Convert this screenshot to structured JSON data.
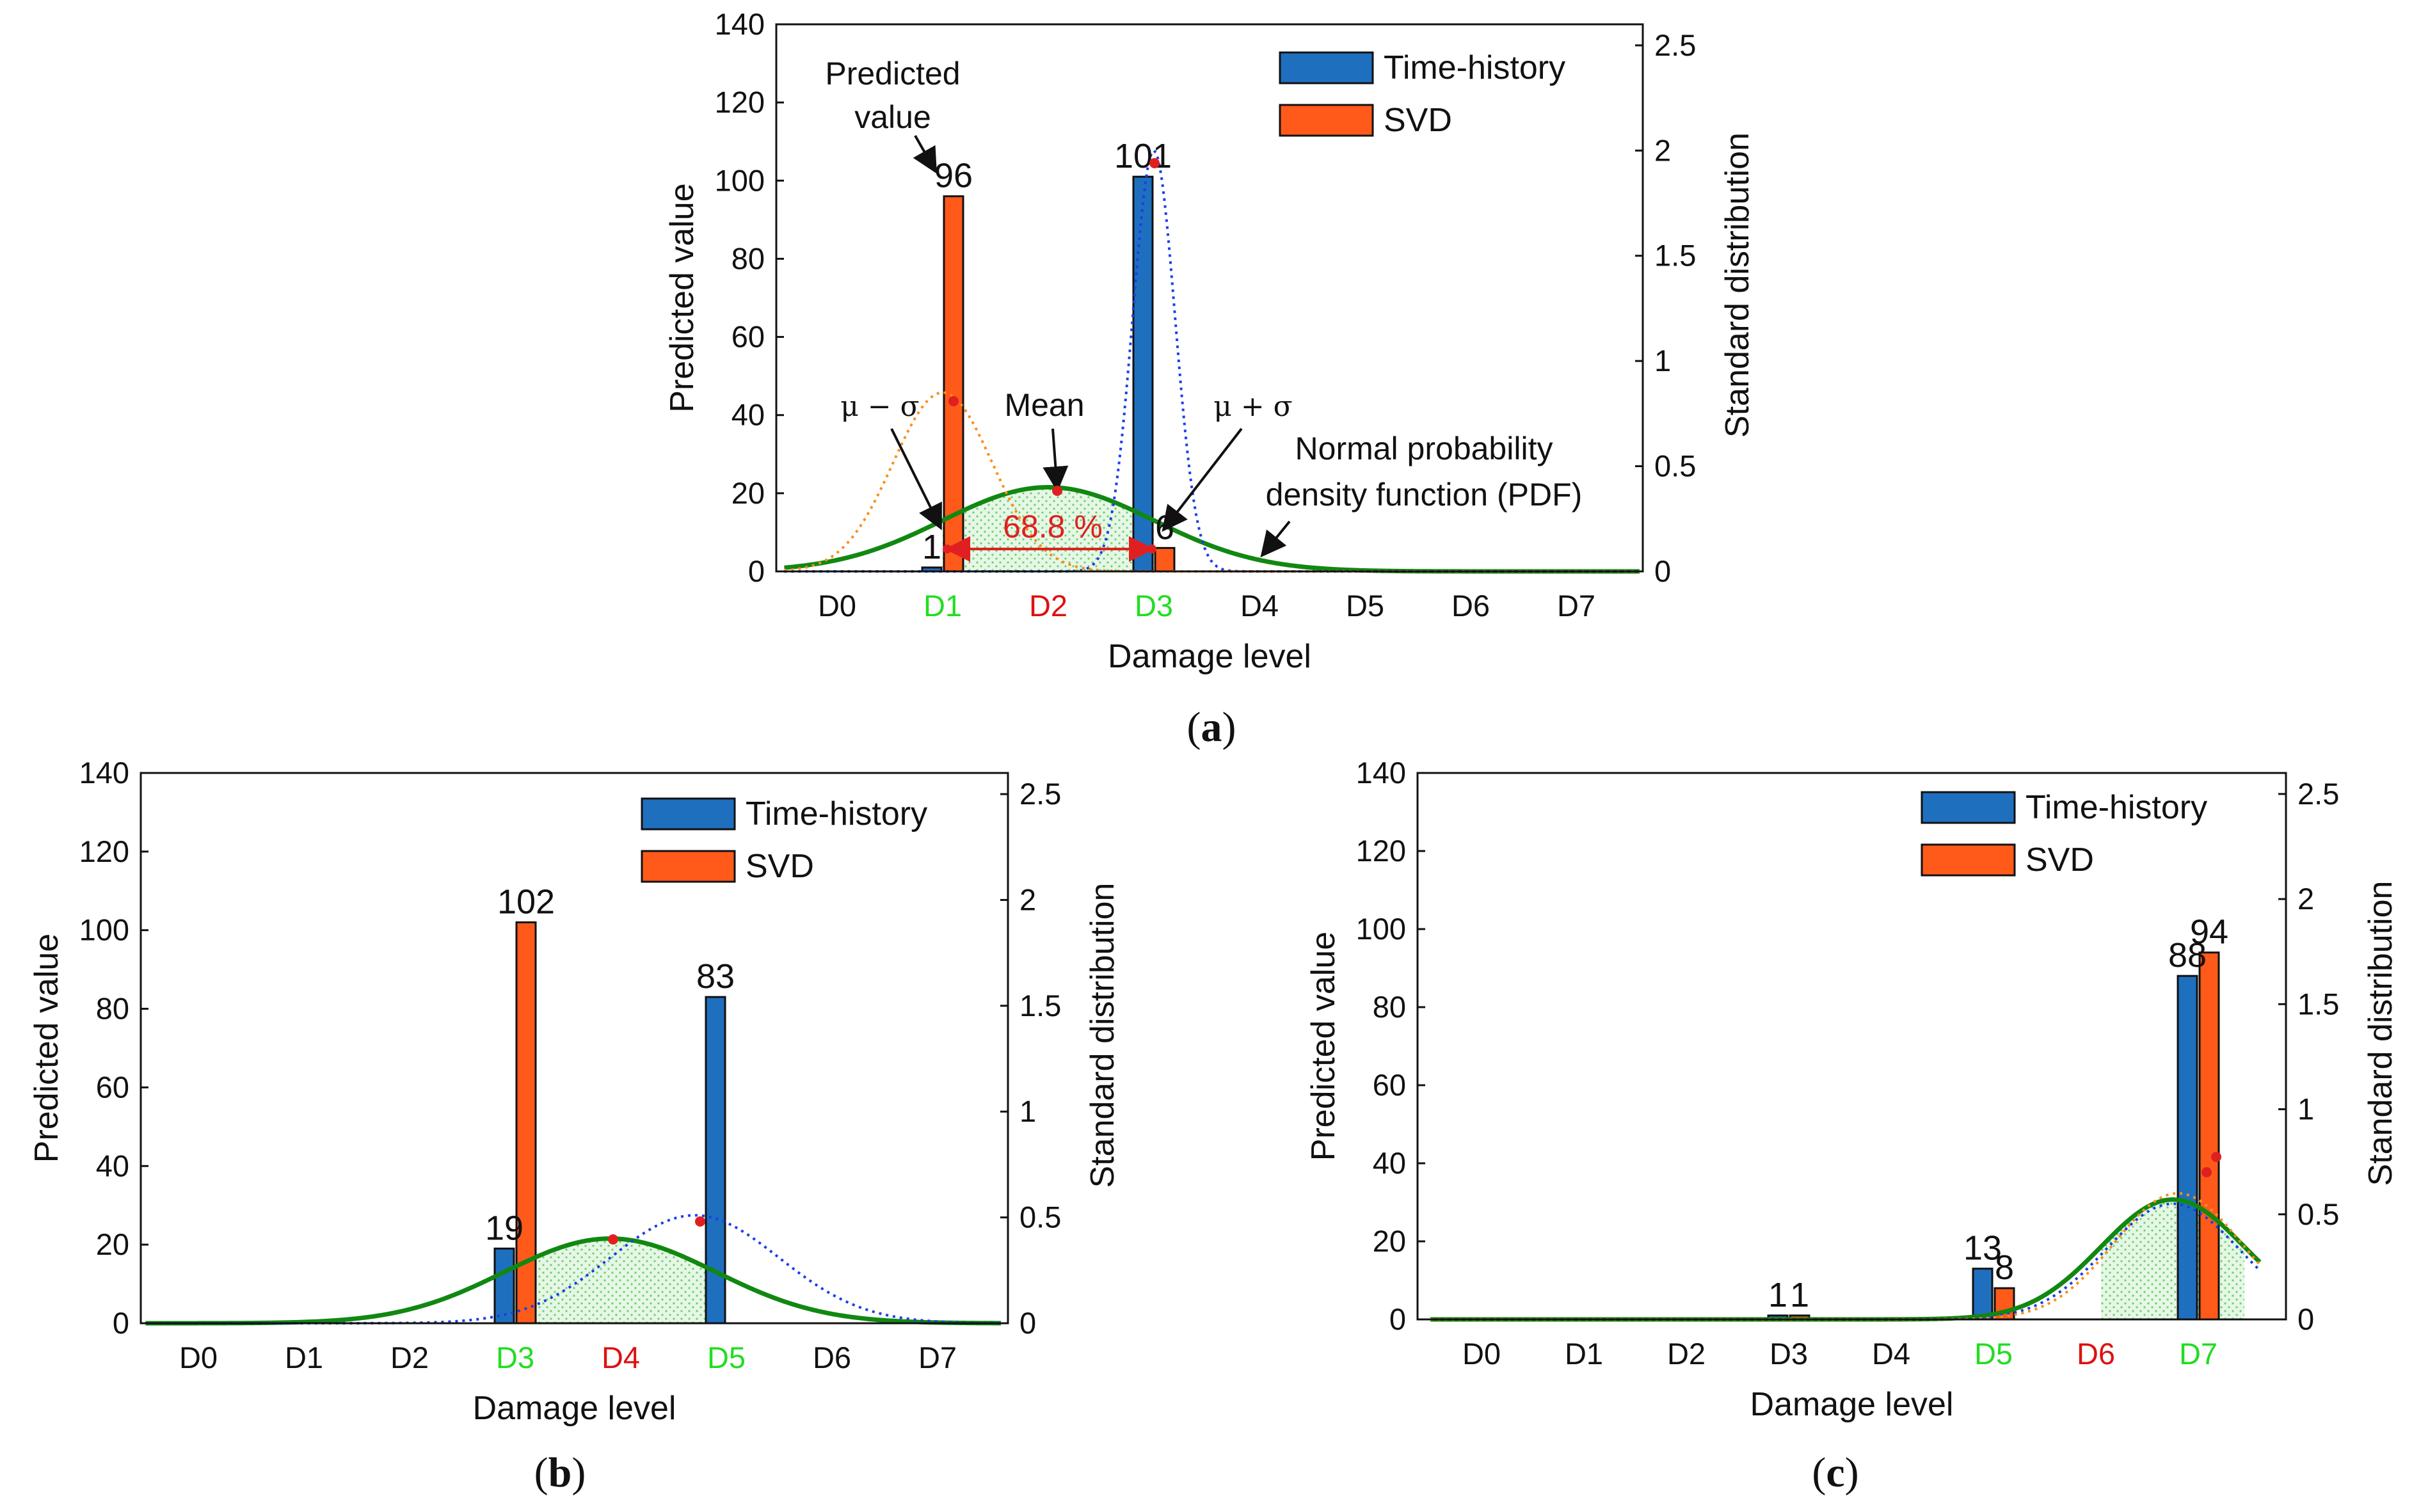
{
  "chart_data": [
    {
      "panel": "a",
      "type": "bar",
      "title": "",
      "caption": "a",
      "xlabel": "Damage level",
      "ylabel": "Predicted value",
      "y2label": "Standard distribution",
      "categories": [
        "D0",
        "D1",
        "D2",
        "D3",
        "D4",
        "D5",
        "D6",
        "D7"
      ],
      "category_colors": [
        "#111111",
        "#22dd22",
        "#dd1111",
        "#22dd22",
        "#111111",
        "#111111",
        "#111111",
        "#111111"
      ],
      "ylim": [
        0,
        140
      ],
      "yticks": [
        0,
        20,
        40,
        60,
        80,
        100,
        120,
        140
      ],
      "y2lim": [
        0,
        2.6
      ],
      "y2ticks": [
        0,
        0.5,
        1,
        1.5,
        2,
        2.5
      ],
      "y2ticklabels": [
        "0",
        "0.5",
        "1",
        "1.5",
        "2",
        "2.5"
      ],
      "series": [
        {
          "name": "Time-history",
          "color": "#1f6fbf",
          "values": [
            0,
            1,
            0,
            101,
            0,
            0,
            0,
            0
          ]
        },
        {
          "name": "SVD",
          "color": "#ff5a1a",
          "values": [
            0,
            96,
            0,
            6,
            0,
            0,
            0,
            0
          ]
        }
      ],
      "bar_labels": [
        {
          "series": 0,
          "index": 1,
          "text": "1"
        },
        {
          "series": 0,
          "index": 3,
          "text": "101"
        },
        {
          "series": 1,
          "index": 1,
          "text": "96"
        },
        {
          "series": 1,
          "index": 3,
          "text": "6"
        }
      ],
      "pdf_curves": [
        {
          "name": "Normal PDF",
          "style": "solid",
          "color": "#118811",
          "mean": 2.0,
          "std": 1.0,
          "scale": 0.4
        },
        {
          "name": "Time-history PDF",
          "style": "dotted",
          "color": "#1a3fe6",
          "mean": 3.0,
          "std": 0.2,
          "scale": 2.0
        },
        {
          "name": "SVD PDF",
          "style": "dotted",
          "color": "#ff8c1a",
          "mean": 1.0,
          "std": 0.47,
          "scale": 0.85
        }
      ],
      "shade_range": [
        1.0,
        3.0
      ],
      "annotations": {
        "predicted_value": [
          "Predicted",
          "value"
        ],
        "mean": "Mean",
        "mu_minus_sigma": "μ − σ",
        "mu_plus_sigma": "μ + σ",
        "pdf_label": [
          "Normal probability",
          "density function (PDF)"
        ],
        "percent": "68.8 %"
      }
    },
    {
      "panel": "b",
      "type": "bar",
      "title": "",
      "caption": "b",
      "xlabel": "Damage level",
      "ylabel": "Predicted value",
      "y2label": "Standard distribution",
      "categories": [
        "D0",
        "D1",
        "D2",
        "D3",
        "D4",
        "D5",
        "D6",
        "D7"
      ],
      "category_colors": [
        "#111111",
        "#111111",
        "#111111",
        "#22dd22",
        "#dd1111",
        "#22dd22",
        "#111111",
        "#111111"
      ],
      "ylim": [
        0,
        140
      ],
      "yticks": [
        0,
        20,
        40,
        60,
        80,
        100,
        120,
        140
      ],
      "y2lim": [
        0,
        2.6
      ],
      "y2ticks": [
        0,
        0.5,
        1,
        1.5,
        2,
        2.5
      ],
      "y2ticklabels": [
        "0",
        "0.5",
        "1",
        "1.5",
        "2",
        "2.5"
      ],
      "series": [
        {
          "name": "Time-history",
          "color": "#1f6fbf",
          "values": [
            0,
            0,
            0,
            19,
            0,
            83,
            0,
            0
          ]
        },
        {
          "name": "SVD",
          "color": "#ff5a1a",
          "values": [
            0,
            0,
            0,
            102,
            0,
            0,
            0,
            0
          ]
        }
      ],
      "bar_labels": [
        {
          "series": 0,
          "index": 3,
          "text": "19"
        },
        {
          "series": 0,
          "index": 5,
          "text": "83"
        },
        {
          "series": 1,
          "index": 3,
          "text": "102"
        }
      ],
      "pdf_curves": [
        {
          "name": "Normal PDF",
          "style": "solid",
          "color": "#118811",
          "mean": 3.9,
          "std": 1.0,
          "scale": 0.4
        },
        {
          "name": "Time-history PDF",
          "style": "dotted",
          "color": "#1a3fe6",
          "mean": 4.7,
          "std": 0.8,
          "scale": 0.51
        }
      ],
      "shade_range": [
        2.9,
        4.9
      ]
    },
    {
      "panel": "c",
      "type": "bar",
      "title": "",
      "caption": "c",
      "xlabel": "Damage level",
      "ylabel": "Predicted value",
      "y2label": "Standard distribution",
      "categories": [
        "D0",
        "D1",
        "D2",
        "D3",
        "D4",
        "D5",
        "D6",
        "D7"
      ],
      "category_colors": [
        "#111111",
        "#111111",
        "#111111",
        "#111111",
        "#111111",
        "#22dd22",
        "#dd1111",
        "#22dd22"
      ],
      "ylim": [
        0,
        140
      ],
      "yticks": [
        0,
        20,
        40,
        60,
        80,
        100,
        120,
        140
      ],
      "y2lim": [
        0,
        2.6
      ],
      "y2ticks": [
        0,
        0.5,
        1,
        1.5,
        2,
        2.5
      ],
      "y2ticklabels": [
        "0",
        "0.5",
        "1",
        "1.5",
        "2",
        "2.5"
      ],
      "series": [
        {
          "name": "Time-history",
          "color": "#1f6fbf",
          "values": [
            0,
            0,
            0,
            1,
            0,
            13,
            0,
            88
          ]
        },
        {
          "name": "SVD",
          "color": "#ff5a1a",
          "values": [
            0,
            0,
            0,
            1,
            0,
            8,
            0,
            94
          ]
        }
      ],
      "bar_labels": [
        {
          "series": 0,
          "index": 3,
          "text": "1"
        },
        {
          "series": 1,
          "index": 3,
          "text": "1"
        },
        {
          "series": 0,
          "index": 5,
          "text": "13"
        },
        {
          "series": 1,
          "index": 5,
          "text": "8"
        },
        {
          "series": 0,
          "index": 7,
          "text": "88"
        },
        {
          "series": 1,
          "index": 7,
          "text": "94"
        }
      ],
      "pdf_curves": [
        {
          "name": "Normal PDF",
          "style": "solid",
          "color": "#118811",
          "mean": 6.75,
          "std": 0.7,
          "scale": 0.57
        },
        {
          "name": "Time-history PDF",
          "style": "dotted",
          "color": "#1a3fe6",
          "mean": 6.75,
          "std": 0.65,
          "scale": 0.55
        },
        {
          "name": "SVD PDF",
          "style": "dotted",
          "color": "#ff8c1a",
          "mean": 6.8,
          "std": 0.62,
          "scale": 0.6
        }
      ],
      "shade_range": [
        6.05,
        7.45
      ]
    }
  ]
}
